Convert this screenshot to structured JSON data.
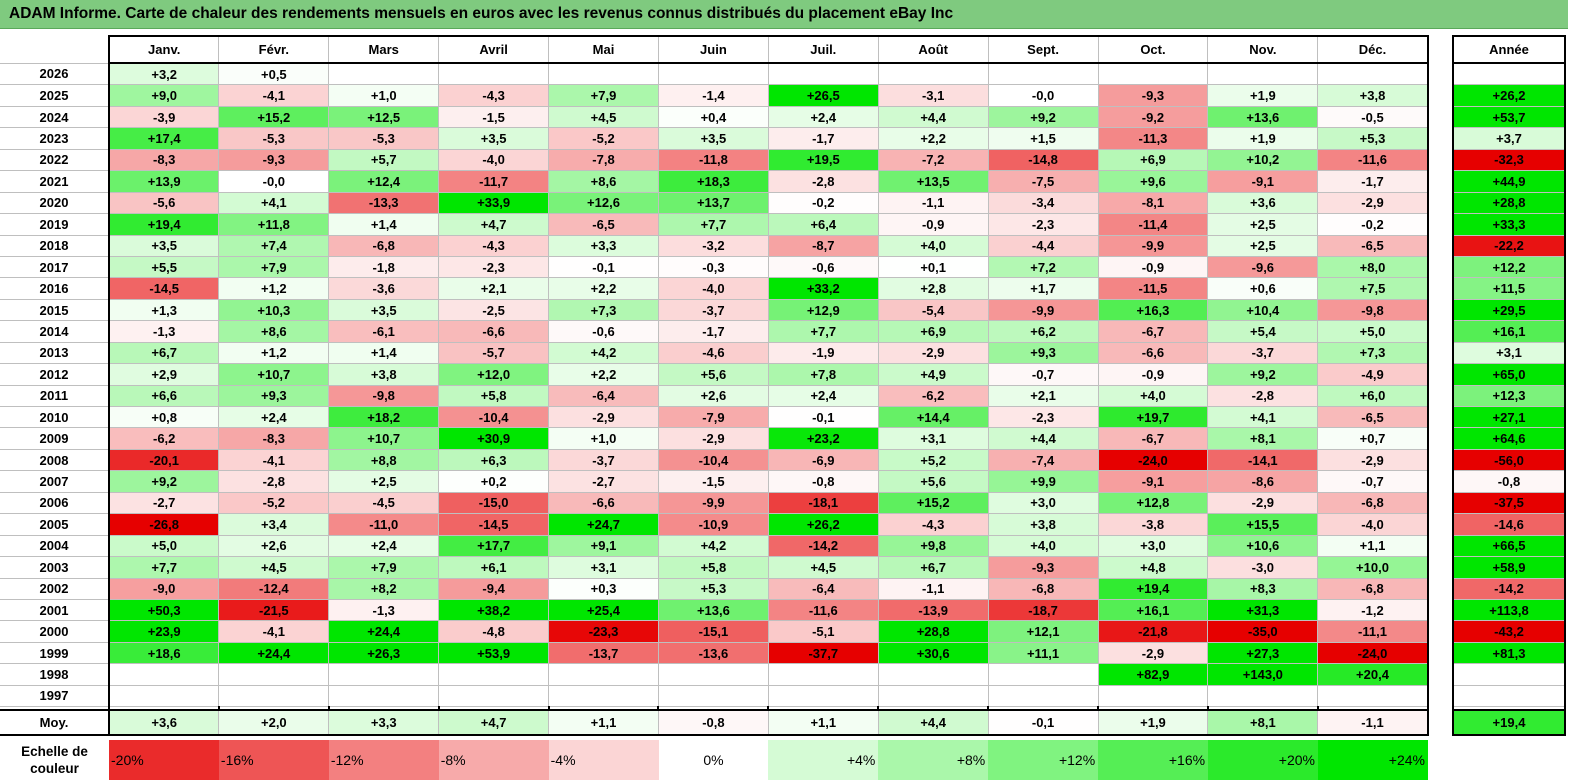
{
  "title": "ADAM Informe. Carte de chaleur des rendements mensuels en euros avec les revenus connus distribués du placement eBay Inc",
  "months": [
    "Janv.",
    "Févr.",
    "Mars",
    "Avril",
    "Mai",
    "Juin",
    "Juil.",
    "Août",
    "Sept.",
    "Oct.",
    "Nov.",
    "Déc."
  ],
  "year_header": "Année",
  "avg_label": "Moy.",
  "scale_label": "Echelle de couleur",
  "colors": {
    "title_bg": "#7fca7f",
    "neg_full": "#e60000",
    "pos_full": "#00e600",
    "neutral": "#ffffff"
  },
  "chart_data": {
    "type": "heatmap",
    "title": "ADAM Informe. Carte de chaleur des rendements mensuels en euros avec les revenus connus distribués du placement eBay Inc",
    "columns": [
      "Janv.",
      "Févr.",
      "Mars",
      "Avril",
      "Mai",
      "Juin",
      "Juil.",
      "Août",
      "Sept.",
      "Oct.",
      "Nov.",
      "Déc.",
      "Année"
    ],
    "rows": [
      {
        "label": "2026",
        "values": [
          "+3,2",
          "+0,5",
          "",
          "",
          "",
          "",
          "",
          "",
          "",
          "",
          "",
          "",
          ""
        ]
      },
      {
        "label": "2025",
        "values": [
          "+9,0",
          "-4,1",
          "+1,0",
          "-4,3",
          "+7,9",
          "-1,4",
          "+26,5",
          "-3,1",
          "-0,0",
          "-9,3",
          "+1,9",
          "+3,8",
          "+26,2"
        ]
      },
      {
        "label": "2024",
        "values": [
          "-3,9",
          "+15,2",
          "+12,5",
          "-1,5",
          "+4,5",
          "+0,4",
          "+2,4",
          "+4,4",
          "+9,2",
          "-9,2",
          "+13,6",
          "-0,5",
          "+53,7"
        ]
      },
      {
        "label": "2023",
        "values": [
          "+17,4",
          "-5,3",
          "-5,3",
          "+3,5",
          "-5,2",
          "+3,5",
          "-1,7",
          "+2,2",
          "+1,5",
          "-11,3",
          "+1,9",
          "+5,3",
          "+3,7"
        ]
      },
      {
        "label": "2022",
        "values": [
          "-8,3",
          "-9,3",
          "+5,7",
          "-4,0",
          "-7,8",
          "-11,8",
          "+19,5",
          "-7,2",
          "-14,8",
          "+6,9",
          "+10,2",
          "-11,6",
          "-32,3"
        ]
      },
      {
        "label": "2021",
        "values": [
          "+13,9",
          "-0,0",
          "+12,4",
          "-11,7",
          "+8,6",
          "+18,3",
          "-2,8",
          "+13,5",
          "-7,5",
          "+9,6",
          "-9,1",
          "-1,7",
          "+44,9"
        ]
      },
      {
        "label": "2020",
        "values": [
          "-5,6",
          "+4,1",
          "-13,3",
          "+33,9",
          "+12,6",
          "+13,7",
          "-0,2",
          "-1,1",
          "-3,4",
          "-8,1",
          "+3,6",
          "-2,9",
          "+28,8"
        ]
      },
      {
        "label": "2019",
        "values": [
          "+19,4",
          "+11,8",
          "+1,4",
          "+4,7",
          "-6,5",
          "+7,7",
          "+6,4",
          "-0,9",
          "-2,3",
          "-11,4",
          "+2,5",
          "-0,2",
          "+33,3"
        ]
      },
      {
        "label": "2018",
        "values": [
          "+3,5",
          "+7,4",
          "-6,8",
          "-4,3",
          "+3,3",
          "-3,2",
          "-8,7",
          "+4,0",
          "-4,4",
          "-9,9",
          "+2,5",
          "-6,5",
          "-22,2"
        ]
      },
      {
        "label": "2017",
        "values": [
          "+5,5",
          "+7,9",
          "-1,8",
          "-2,3",
          "-0,1",
          "-0,3",
          "-0,6",
          "+0,1",
          "+7,2",
          "-0,9",
          "-9,6",
          "+8,0",
          "+12,2"
        ]
      },
      {
        "label": "2016",
        "values": [
          "-14,5",
          "+1,2",
          "-3,6",
          "+2,1",
          "+2,2",
          "-4,0",
          "+33,2",
          "+2,8",
          "+1,7",
          "-11,5",
          "+0,6",
          "+7,5",
          "+11,5"
        ]
      },
      {
        "label": "2015",
        "values": [
          "+1,3",
          "+10,3",
          "+3,5",
          "-2,5",
          "+7,3",
          "-3,7",
          "+12,9",
          "-5,4",
          "-9,9",
          "+16,3",
          "+10,4",
          "-9,8",
          "+29,5"
        ]
      },
      {
        "label": "2014",
        "values": [
          "-1,3",
          "+8,6",
          "-6,1",
          "-6,6",
          "-0,6",
          "-1,7",
          "+7,7",
          "+6,9",
          "+6,2",
          "-6,7",
          "+5,4",
          "+5,0",
          "+16,1"
        ]
      },
      {
        "label": "2013",
        "values": [
          "+6,7",
          "+1,2",
          "+1,4",
          "-5,7",
          "+4,2",
          "-4,6",
          "-1,9",
          "-2,9",
          "+9,3",
          "-6,6",
          "-3,7",
          "+7,3",
          "+3,1"
        ]
      },
      {
        "label": "2012",
        "values": [
          "+2,9",
          "+10,7",
          "+3,8",
          "+12,0",
          "+2,2",
          "+5,6",
          "+7,8",
          "+4,9",
          "-0,7",
          "-0,9",
          "+9,2",
          "-4,9",
          "+65,0"
        ]
      },
      {
        "label": "2011",
        "values": [
          "+6,6",
          "+9,3",
          "-9,8",
          "+5,8",
          "-6,4",
          "+2,6",
          "+2,4",
          "-6,2",
          "+2,1",
          "+4,0",
          "-2,8",
          "+6,0",
          "+12,3"
        ]
      },
      {
        "label": "2010",
        "values": [
          "+0,8",
          "+2,4",
          "+18,2",
          "-10,4",
          "-2,9",
          "-7,9",
          "-0,1",
          "+14,4",
          "-2,3",
          "+19,7",
          "+4,1",
          "-6,5",
          "+27,1"
        ]
      },
      {
        "label": "2009",
        "values": [
          "-6,2",
          "-8,3",
          "+10,7",
          "+30,9",
          "+1,0",
          "-2,9",
          "+23,2",
          "+3,1",
          "+4,4",
          "-6,7",
          "+8,1",
          "+0,7",
          "+64,6"
        ]
      },
      {
        "label": "2008",
        "values": [
          "-20,1",
          "-4,1",
          "+8,8",
          "+6,3",
          "-3,7",
          "-10,4",
          "-6,9",
          "+5,2",
          "-7,4",
          "-24,0",
          "-14,1",
          "-2,9",
          "-56,0"
        ]
      },
      {
        "label": "2007",
        "values": [
          "+9,2",
          "-2,8",
          "+2,5",
          "+0,2",
          "-2,7",
          "-1,5",
          "-0,8",
          "+5,6",
          "+9,9",
          "-9,1",
          "-8,6",
          "-0,7",
          "-0,8"
        ]
      },
      {
        "label": "2006",
        "values": [
          "-2,7",
          "-5,2",
          "-4,5",
          "-15,0",
          "-6,6",
          "-9,9",
          "-18,1",
          "+15,2",
          "+3,0",
          "+12,8",
          "-2,9",
          "-6,8",
          "-37,5"
        ]
      },
      {
        "label": "2005",
        "values": [
          "-26,8",
          "+3,4",
          "-11,0",
          "-14,5",
          "+24,7",
          "-10,9",
          "+26,2",
          "-4,3",
          "+3,8",
          "-3,8",
          "+15,5",
          "-4,0",
          "-14,6"
        ]
      },
      {
        "label": "2004",
        "values": [
          "+5,0",
          "+2,6",
          "+2,4",
          "+17,7",
          "+9,1",
          "+4,2",
          "-14,2",
          "+9,8",
          "+4,0",
          "+3,0",
          "+10,6",
          "+1,1",
          "+66,5"
        ]
      },
      {
        "label": "2003",
        "values": [
          "+7,7",
          "+4,5",
          "+7,9",
          "+6,1",
          "+3,1",
          "+5,8",
          "+4,5",
          "+6,7",
          "-9,3",
          "+4,8",
          "-3,0",
          "+10,0",
          "+58,9"
        ]
      },
      {
        "label": "2002",
        "values": [
          "-9,0",
          "-12,4",
          "+8,2",
          "-9,4",
          "+0,3",
          "+5,3",
          "-6,4",
          "-1,1",
          "-6,8",
          "+19,4",
          "+8,3",
          "-6,8",
          "-14,2"
        ]
      },
      {
        "label": "2001",
        "values": [
          "+50,3",
          "-21,5",
          "-1,3",
          "+38,2",
          "+25,4",
          "+13,6",
          "-11,6",
          "-13,9",
          "-18,7",
          "+16,1",
          "+31,3",
          "-1,2",
          "+113,8"
        ]
      },
      {
        "label": "2000",
        "values": [
          "+23,9",
          "-4,1",
          "+24,4",
          "-4,8",
          "-23,3",
          "-15,1",
          "-5,1",
          "+28,8",
          "+12,1",
          "-21,8",
          "-35,0",
          "-11,1",
          "-43,2"
        ]
      },
      {
        "label": "1999",
        "values": [
          "+18,6",
          "+24,4",
          "+26,3",
          "+53,9",
          "-13,7",
          "-13,6",
          "-37,7",
          "+30,6",
          "+11,1",
          "-2,9",
          "+27,3",
          "-24,0",
          "+81,3"
        ]
      },
      {
        "label": "1998",
        "values": [
          "",
          "",
          "",
          "",
          "",
          "",
          "",
          "",
          "",
          "+82,9",
          "+143,0",
          "+20,4",
          ""
        ]
      },
      {
        "label": "1997",
        "values": [
          "",
          "",
          "",
          "",
          "",
          "",
          "",
          "",
          "",
          "",
          "",
          "",
          ""
        ]
      }
    ],
    "average": {
      "label": "Moy.",
      "values": [
        "+3,6",
        "+2,0",
        "+3,3",
        "+4,7",
        "+1,1",
        "-0,8",
        "+1,1",
        "+4,4",
        "-0,1",
        "+1,9",
        "+8,1",
        "-1,1",
        "+19,4"
      ]
    },
    "color_scale": {
      "label": "Echelle de couleur",
      "stops": [
        "-20%",
        "-16%",
        "-12%",
        "-8%",
        "-4%",
        "0%",
        "+4%",
        "+8%",
        "+12%",
        "+16%",
        "+20%",
        "+24%"
      ],
      "min": -20,
      "max": 24
    }
  }
}
